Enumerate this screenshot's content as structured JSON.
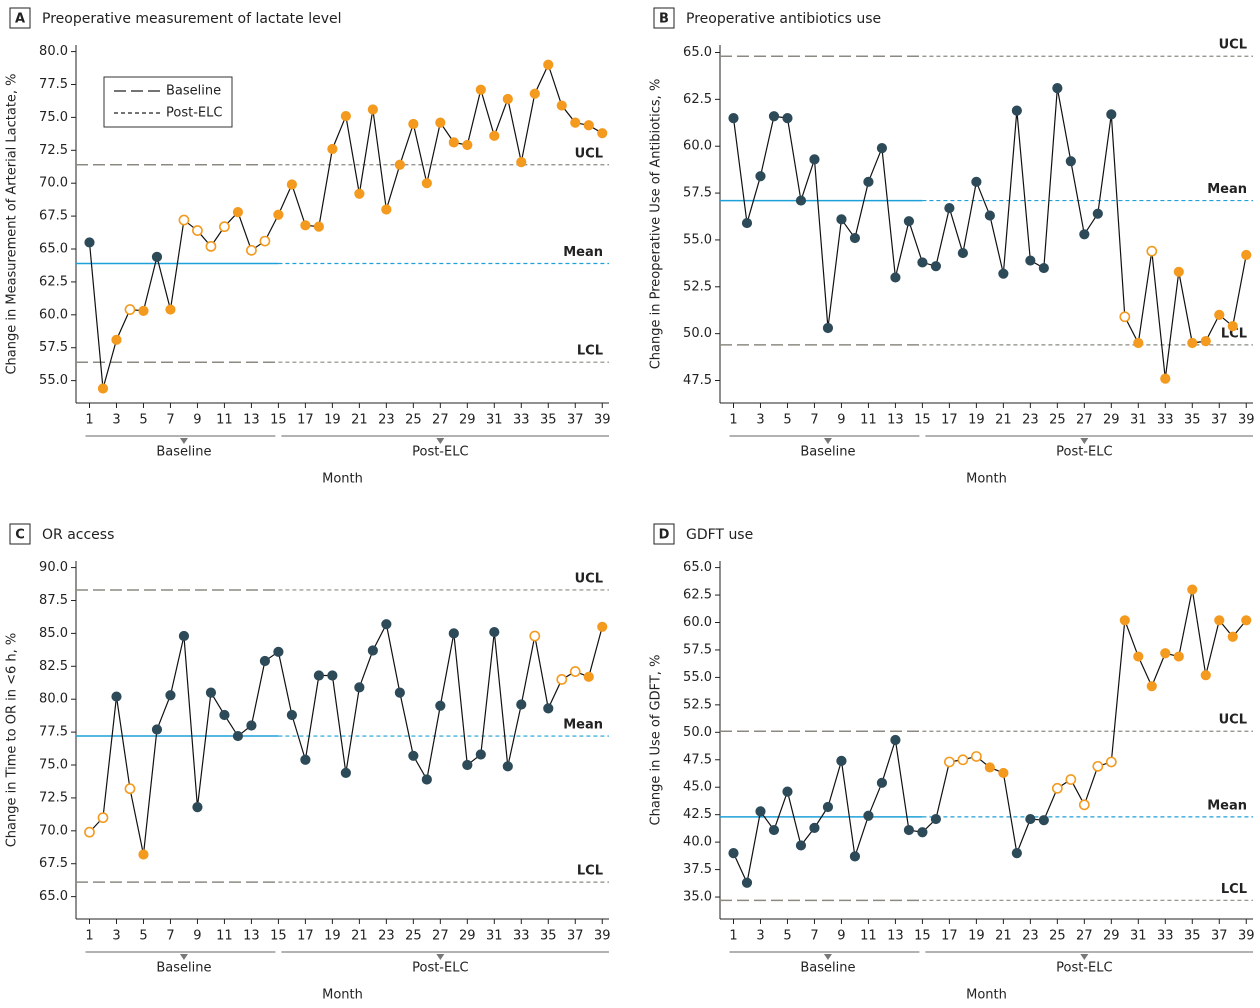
{
  "chart_data": [
    {
      "type": "line",
      "letter": "A",
      "title": "Preoperative measurement of lactate level",
      "y_label": "Change in Measurement of Arterial Lactate, %",
      "x_label": "Month",
      "x": [
        1,
        2,
        3,
        4,
        5,
        6,
        7,
        8,
        9,
        10,
        11,
        12,
        13,
        14,
        15,
        16,
        17,
        18,
        19,
        20,
        21,
        22,
        23,
        24,
        25,
        26,
        27,
        28,
        29,
        30,
        31,
        32,
        33,
        34,
        35,
        36,
        37,
        38,
        39
      ],
      "values": [
        65.5,
        54.4,
        58.1,
        60.4,
        60.3,
        64.4,
        60.4,
        67.2,
        66.4,
        65.2,
        66.7,
        67.8,
        64.9,
        65.6,
        67.6,
        69.9,
        66.8,
        66.7,
        72.6,
        75.1,
        69.2,
        75.6,
        68.0,
        71.4,
        74.5,
        70.0,
        74.6,
        73.1,
        72.9,
        77.1,
        73.6,
        76.4,
        71.6,
        76.8,
        79.0,
        75.9,
        74.6,
        74.4,
        73.8
      ],
      "markers": [
        "d",
        "f",
        "f",
        "o",
        "f",
        "d",
        "f",
        "o",
        "o",
        "o",
        "o",
        "f",
        "o",
        "o",
        "f",
        "f",
        "f",
        "f",
        "f",
        "f",
        "f",
        "f",
        "f",
        "f",
        "f",
        "f",
        "f",
        "f",
        "f",
        "f",
        "f",
        "f",
        "f",
        "f",
        "f",
        "f",
        "f",
        "f",
        "f"
      ],
      "marker_colors": {
        "d": "#2d4a59",
        "f": "#f39a1f",
        "o": "#f39a1f"
      },
      "line_color": "#111111",
      "xlim": [
        0,
        39.5
      ],
      "xticks": [
        1,
        3,
        5,
        7,
        9,
        11,
        13,
        15,
        17,
        19,
        21,
        23,
        25,
        27,
        29,
        31,
        33,
        35,
        37,
        39
      ],
      "ylim": [
        53.3,
        80.5
      ],
      "yticks": [
        {
          "value": 55,
          "label": "55.0"
        },
        {
          "value": 57.5,
          "label": "57.5"
        },
        {
          "value": 60,
          "label": "60.0"
        },
        {
          "value": 62.5,
          "label": "62.5"
        },
        {
          "value": 65,
          "label": "65.0"
        },
        {
          "value": 67.5,
          "label": "67.5"
        },
        {
          "value": 70,
          "label": "70.0"
        },
        {
          "value": 72.5,
          "label": "72.5"
        },
        {
          "value": 75,
          "label": "75.0"
        },
        {
          "value": 77.5,
          "label": "77.5"
        },
        {
          "value": 80,
          "label": "80.0"
        }
      ],
      "reference_lines": [
        {
          "label": "UCL",
          "value": 71.4,
          "color": "#8c8a80",
          "dash": [
            "long",
            "short"
          ]
        },
        {
          "label": "Mean",
          "value": 63.9,
          "color": "#1ea0d8",
          "dash": [
            "solid",
            "short"
          ]
        },
        {
          "label": "LCL",
          "value": 56.4,
          "color": "#8c8a80",
          "dash": [
            "long",
            "short"
          ]
        }
      ],
      "phases": [
        {
          "label": "Baseline",
          "start": 1,
          "end": 15
        },
        {
          "label": "Post-ELC",
          "start": 15,
          "end": 39
        }
      ],
      "legend": {
        "position": "upper left",
        "entries": [
          {
            "label": "Baseline",
            "dash": "long"
          },
          {
            "label": "Post-ELC",
            "dash": "short"
          }
        ]
      }
    },
    {
      "type": "line",
      "letter": "B",
      "title": "Preoperative antibiotics use",
      "y_label": "Change in Preoperative Use of Antibiotics, %",
      "x_label": "Month",
      "x": [
        1,
        2,
        3,
        4,
        5,
        6,
        7,
        8,
        9,
        10,
        11,
        12,
        13,
        14,
        15,
        16,
        17,
        18,
        19,
        20,
        21,
        22,
        23,
        24,
        25,
        26,
        27,
        28,
        29,
        30,
        31,
        32,
        33,
        34,
        35,
        36,
        37,
        38,
        39
      ],
      "values": [
        61.5,
        55.9,
        58.4,
        61.6,
        61.5,
        57.1,
        59.3,
        50.3,
        56.1,
        55.1,
        58.1,
        59.9,
        53.0,
        56.0,
        53.8,
        53.6,
        56.7,
        54.3,
        58.1,
        56.3,
        53.2,
        61.9,
        53.9,
        53.5,
        63.1,
        59.2,
        55.3,
        56.4,
        61.7,
        50.9,
        49.5,
        54.4,
        47.6,
        53.3,
        49.5,
        49.6,
        51.0,
        50.4,
        54.2
      ],
      "markers": [
        "d",
        "d",
        "d",
        "d",
        "d",
        "d",
        "d",
        "d",
        "d",
        "d",
        "d",
        "d",
        "d",
        "d",
        "d",
        "d",
        "d",
        "d",
        "d",
        "d",
        "d",
        "d",
        "d",
        "d",
        "d",
        "d",
        "d",
        "d",
        "d",
        "o",
        "f",
        "o",
        "f",
        "f",
        "f",
        "f",
        "f",
        "f",
        "f"
      ],
      "marker_colors": {
        "d": "#2d4a59",
        "f": "#f39a1f",
        "o": "#f39a1f"
      },
      "line_color": "#111111",
      "xlim": [
        0,
        39.5
      ],
      "xticks": [
        1,
        3,
        5,
        7,
        9,
        11,
        13,
        15,
        17,
        19,
        21,
        23,
        25,
        27,
        29,
        31,
        33,
        35,
        37,
        39
      ],
      "ylim": [
        46.3,
        65.4
      ],
      "yticks": [
        {
          "value": 47.5,
          "label": "47.5"
        },
        {
          "value": 50,
          "label": "50.0"
        },
        {
          "value": 52.5,
          "label": "52.5"
        },
        {
          "value": 55,
          "label": "55.0"
        },
        {
          "value": 57.5,
          "label": "57.5"
        },
        {
          "value": 60,
          "label": "60.0"
        },
        {
          "value": 62.5,
          "label": "62.5"
        },
        {
          "value": 65,
          "label": "65.0"
        }
      ],
      "reference_lines": [
        {
          "label": "UCL",
          "value": 64.8,
          "color": "#8c8a80",
          "dash": [
            "long",
            "short"
          ]
        },
        {
          "label": "Mean",
          "value": 57.1,
          "color": "#1ea0d8",
          "dash": [
            "solid",
            "short"
          ]
        },
        {
          "label": "LCL",
          "value": 49.4,
          "color": "#8c8a80",
          "dash": [
            "long",
            "short"
          ]
        }
      ],
      "phases": [
        {
          "label": "Baseline",
          "start": 1,
          "end": 15
        },
        {
          "label": "Post-ELC",
          "start": 15,
          "end": 39
        }
      ]
    },
    {
      "type": "line",
      "letter": "C",
      "title": "OR access",
      "y_label": "Change in Time to OR in <6 h, %",
      "x_label": "Month",
      "x": [
        1,
        2,
        3,
        4,
        5,
        6,
        7,
        8,
        9,
        10,
        11,
        12,
        13,
        14,
        15,
        16,
        17,
        18,
        19,
        20,
        21,
        22,
        23,
        24,
        25,
        26,
        27,
        28,
        29,
        30,
        31,
        32,
        33,
        34,
        35,
        36,
        37,
        38,
        39
      ],
      "values": [
        69.9,
        71.0,
        80.2,
        73.2,
        68.2,
        77.7,
        80.3,
        84.8,
        71.8,
        80.5,
        78.8,
        77.2,
        78.0,
        82.9,
        83.6,
        78.8,
        75.4,
        81.8,
        81.8,
        74.4,
        80.9,
        83.7,
        85.7,
        80.5,
        75.7,
        73.9,
        79.5,
        85.0,
        75.0,
        75.8,
        85.1,
        74.9,
        79.6,
        84.8,
        79.3,
        81.5,
        82.1,
        81.7,
        85.5
      ],
      "markers": [
        "o",
        "o",
        "d",
        "o",
        "f",
        "d",
        "d",
        "d",
        "d",
        "d",
        "d",
        "d",
        "d",
        "d",
        "d",
        "d",
        "d",
        "d",
        "d",
        "d",
        "d",
        "d",
        "d",
        "d",
        "d",
        "d",
        "d",
        "d",
        "d",
        "d",
        "d",
        "d",
        "d",
        "o",
        "d",
        "o",
        "o",
        "f",
        "f"
      ],
      "marker_colors": {
        "d": "#2d4a59",
        "f": "#f39a1f",
        "o": "#f39a1f"
      },
      "line_color": "#111111",
      "xlim": [
        0,
        39.5
      ],
      "xticks": [
        1,
        3,
        5,
        7,
        9,
        11,
        13,
        15,
        17,
        19,
        21,
        23,
        25,
        27,
        29,
        31,
        33,
        35,
        37,
        39
      ],
      "ylim": [
        63.3,
        90.5
      ],
      "yticks": [
        {
          "value": 65,
          "label": "65.0"
        },
        {
          "value": 67.5,
          "label": "67.5"
        },
        {
          "value": 70,
          "label": "70.0"
        },
        {
          "value": 72.5,
          "label": "72.5"
        },
        {
          "value": 75,
          "label": "75.0"
        },
        {
          "value": 77.5,
          "label": "77.5"
        },
        {
          "value": 80,
          "label": "80.0"
        },
        {
          "value": 82.5,
          "label": "82.5"
        },
        {
          "value": 85,
          "label": "85.0"
        },
        {
          "value": 87.5,
          "label": "87.5"
        },
        {
          "value": 90,
          "label": "90.0"
        }
      ],
      "reference_lines": [
        {
          "label": "UCL",
          "value": 88.3,
          "color": "#8c8a80",
          "dash": [
            "long",
            "short"
          ]
        },
        {
          "label": "Mean",
          "value": 77.2,
          "color": "#1ea0d8",
          "dash": [
            "solid",
            "short"
          ]
        },
        {
          "label": "LCL",
          "value": 66.1,
          "color": "#8c8a80",
          "dash": [
            "long",
            "short"
          ]
        }
      ],
      "phases": [
        {
          "label": "Baseline",
          "start": 1,
          "end": 15
        },
        {
          "label": "Post-ELC",
          "start": 15,
          "end": 39
        }
      ]
    },
    {
      "type": "line",
      "letter": "D",
      "title": "GDFT use",
      "y_label": "Change in Use of GDFT, %",
      "x_label": "Month",
      "x": [
        1,
        2,
        3,
        4,
        5,
        6,
        7,
        8,
        9,
        10,
        11,
        12,
        13,
        14,
        15,
        16,
        17,
        18,
        19,
        20,
        21,
        22,
        23,
        24,
        25,
        26,
        27,
        28,
        29,
        30,
        31,
        32,
        33,
        34,
        35,
        36,
        37,
        38,
        39
      ],
      "values": [
        39.0,
        36.3,
        42.8,
        41.1,
        44.6,
        39.7,
        41.3,
        43.2,
        47.4,
        38.7,
        42.4,
        45.4,
        49.3,
        41.1,
        40.9,
        42.1,
        47.3,
        47.5,
        47.8,
        46.8,
        46.3,
        39.0,
        42.1,
        42.0,
        44.9,
        45.7,
        43.4,
        46.9,
        47.3,
        60.2,
        56.9,
        54.2,
        57.2,
        56.9,
        63.0,
        55.2,
        60.2,
        58.7,
        60.2
      ],
      "markers": [
        "d",
        "d",
        "d",
        "d",
        "d",
        "d",
        "d",
        "d",
        "d",
        "d",
        "d",
        "d",
        "d",
        "d",
        "d",
        "d",
        "o",
        "o",
        "o",
        "f",
        "f",
        "d",
        "d",
        "d",
        "o",
        "o",
        "o",
        "o",
        "o",
        "f",
        "f",
        "f",
        "f",
        "f",
        "f",
        "f",
        "f",
        "f",
        "f"
      ],
      "marker_colors": {
        "d": "#2d4a59",
        "f": "#f39a1f",
        "o": "#f39a1f"
      },
      "line_color": "#111111",
      "xlim": [
        0,
        39.5
      ],
      "xticks": [
        1,
        3,
        5,
        7,
        9,
        11,
        13,
        15,
        17,
        19,
        21,
        23,
        25,
        27,
        29,
        31,
        33,
        35,
        37,
        39
      ],
      "ylim": [
        33.0,
        65.6
      ],
      "yticks": [
        {
          "value": 35,
          "label": "35.0"
        },
        {
          "value": 37.5,
          "label": "37.5"
        },
        {
          "value": 40,
          "label": "40.0"
        },
        {
          "value": 42.5,
          "label": "42.5"
        },
        {
          "value": 45,
          "label": "45.0"
        },
        {
          "value": 47.5,
          "label": "47.5"
        },
        {
          "value": 50,
          "label": "50.0"
        },
        {
          "value": 52.5,
          "label": "52.5"
        },
        {
          "value": 55,
          "label": "55.0"
        },
        {
          "value": 57.5,
          "label": "57.5"
        },
        {
          "value": 60,
          "label": "60.0"
        },
        {
          "value": 62.5,
          "label": "62.5"
        },
        {
          "value": 65,
          "label": "65.0"
        }
      ],
      "reference_lines": [
        {
          "label": "UCL",
          "value": 50.1,
          "color": "#8c8a80",
          "dash": [
            "long",
            "short"
          ]
        },
        {
          "label": "Mean",
          "value": 42.3,
          "color": "#1ea0d8",
          "dash": [
            "solid",
            "short"
          ]
        },
        {
          "label": "LCL",
          "value": 34.7,
          "color": "#8c8a80",
          "dash": [
            "long",
            "short"
          ]
        }
      ],
      "phases": [
        {
          "label": "Baseline",
          "start": 1,
          "end": 15
        },
        {
          "label": "Post-ELC",
          "start": 15,
          "end": 39
        }
      ]
    }
  ]
}
